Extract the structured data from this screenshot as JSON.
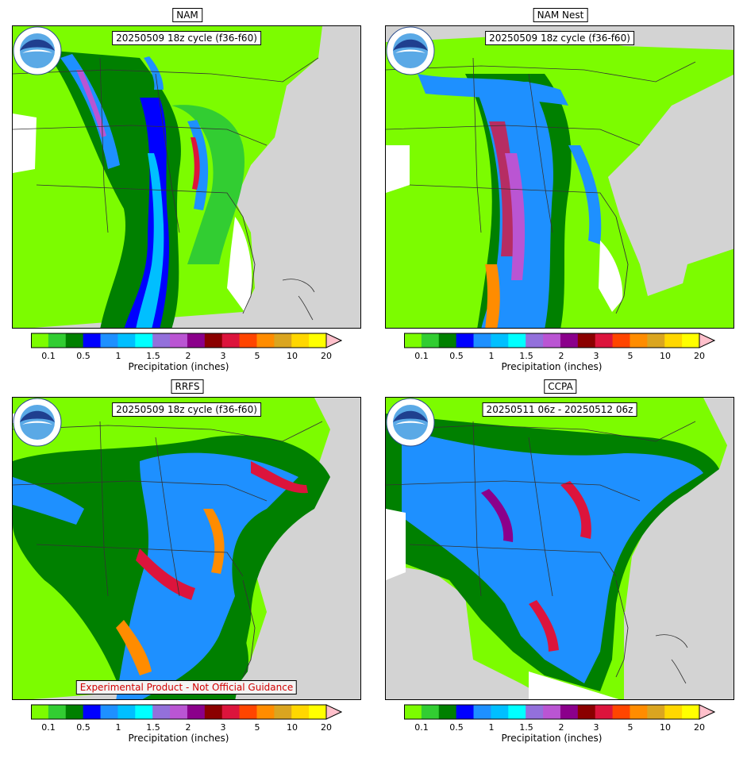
{
  "panels": [
    {
      "title": "NAM",
      "subtitle": "20250509 18z cycle (f36-f60)"
    },
    {
      "title": "NAM Nest",
      "subtitle": "20250509 18z cycle (f36-f60)"
    },
    {
      "title": "RRFS",
      "subtitle": "20250509 18z cycle (f36-f60)",
      "note": "Experimental Product - Not Official Guidance"
    },
    {
      "title": "CCPA",
      "subtitle": "20250511 06z - 20250512 06z"
    }
  ],
  "colorbar": {
    "label": "Precipitation (inches)",
    "tick_labels": [
      "0.1",
      "0.5",
      "1",
      "1.5",
      "2",
      "3",
      "5",
      "10",
      "20"
    ],
    "colors": [
      "#7cfc00",
      "#32cd32",
      "#008000",
      "#0000ff",
      "#1e90ff",
      "#00bfff",
      "#00ffff",
      "#9370db",
      "#ba55d3",
      "#8b008b",
      "#8b0000",
      "#dc143c",
      "#ff4500",
      "#ff8c00",
      "#daa520",
      "#ffd700",
      "#ffff00",
      "#ffc0cb"
    ]
  },
  "icons": {
    "logo": "noaa-logo-icon"
  },
  "map_colors": {
    "land_gray": "#d3d3d3",
    "outside": "#ffffff"
  }
}
